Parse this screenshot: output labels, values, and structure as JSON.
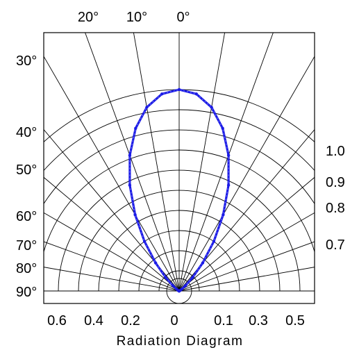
{
  "chart_data": {
    "type": "polar-radiation",
    "title": "",
    "caption": "Radiation Diagram",
    "top_angle_labels": [
      "20°",
      "10°",
      "0°"
    ],
    "left_angle_labels": [
      "30°",
      "40°",
      "50°",
      "60°",
      "70°",
      "80°",
      "90°"
    ],
    "right_intensity_labels": [
      "1.0",
      "0.9",
      "0.8",
      "0.7"
    ],
    "bottom_labels": [
      "0.6",
      "0.4",
      "0.2",
      "0",
      "0.1",
      "0.3",
      "0.5"
    ],
    "grid": true,
    "radial_line_step_deg": 10,
    "ring_count": 10,
    "series": [
      {
        "color": "#1a1ae6",
        "angle_deg": [
          0,
          5,
          10,
          15,
          20,
          25,
          30,
          35,
          40,
          45,
          50,
          55,
          60,
          65,
          70,
          75,
          80,
          85,
          90
        ],
        "relative_intensity": [
          1.0,
          0.982,
          0.926,
          0.836,
          0.717,
          0.58,
          0.437,
          0.3,
          0.182,
          0.094,
          0.04,
          0.015,
          0.005,
          0.002,
          0.0,
          0.0,
          0.0,
          0.0,
          0.0
        ]
      }
    ]
  }
}
